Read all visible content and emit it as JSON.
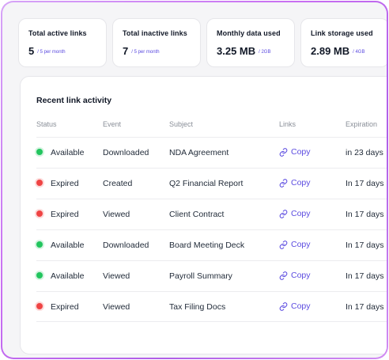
{
  "stats": [
    {
      "label": "Total active links",
      "value": "5",
      "sub": "/ 5 per month"
    },
    {
      "label": "Total inactive links",
      "value": "7",
      "sub": "/ 5 per month"
    },
    {
      "label": "Monthly data used",
      "value": "3.25 MB",
      "sub": "/ 2GB"
    },
    {
      "label": "Link storage used",
      "value": "2.89 MB",
      "sub": "/ 4GB"
    }
  ],
  "activity": {
    "title": "Recent link activity",
    "columns": [
      "Status",
      "Event",
      "Subject",
      "Links",
      "Expiration"
    ],
    "copy_label": "Copy",
    "status_colors": {
      "Available": "#22c55e",
      "Expired": "#ef4444"
    },
    "rows": [
      {
        "status": "Available",
        "event": "Downloaded",
        "subject": "NDA Agreement",
        "expiration": "in 23 days"
      },
      {
        "status": "Expired",
        "event": "Created",
        "subject": "Q2 Financial Report",
        "expiration": "In 17 days"
      },
      {
        "status": "Expired",
        "event": "Viewed",
        "subject": "Client Contract",
        "expiration": "In 17 days"
      },
      {
        "status": "Available",
        "event": "Downloaded",
        "subject": "Board Meeting Deck",
        "expiration": "In 17 days"
      },
      {
        "status": "Available",
        "event": "Viewed",
        "subject": "Payroll Summary",
        "expiration": "In 17 days"
      },
      {
        "status": "Expired",
        "event": "Viewed",
        "subject": "Tax Filing Docs",
        "expiration": "In 17 days"
      }
    ]
  }
}
